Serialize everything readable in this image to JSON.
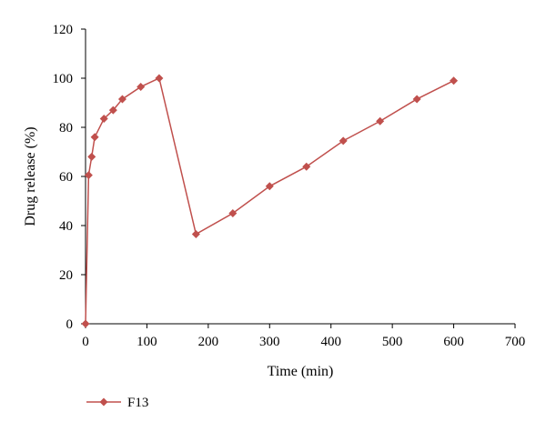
{
  "chart_data": {
    "type": "line",
    "xlabel": "Time (min)",
    "ylabel": "Drug release (%)",
    "xlim": [
      0,
      700
    ],
    "ylim": [
      0,
      120
    ],
    "xticks": [
      0,
      100,
      200,
      300,
      400,
      500,
      600,
      700
    ],
    "yticks": [
      0,
      20,
      40,
      60,
      80,
      100,
      120
    ],
    "grid": false,
    "legend_position": "bottom-left",
    "series": [
      {
        "name": "F13",
        "color": "#c0504d",
        "marker": "diamond",
        "x": [
          0,
          5,
          10,
          15,
          30,
          45,
          60,
          90,
          120,
          180,
          240,
          300,
          360,
          420,
          480,
          540,
          600
        ],
        "y": [
          0,
          60.5,
          68,
          76,
          83.5,
          87,
          91.5,
          96.5,
          100,
          36.5,
          45,
          56,
          64,
          74.5,
          82.5,
          91.5,
          99
        ]
      }
    ]
  }
}
